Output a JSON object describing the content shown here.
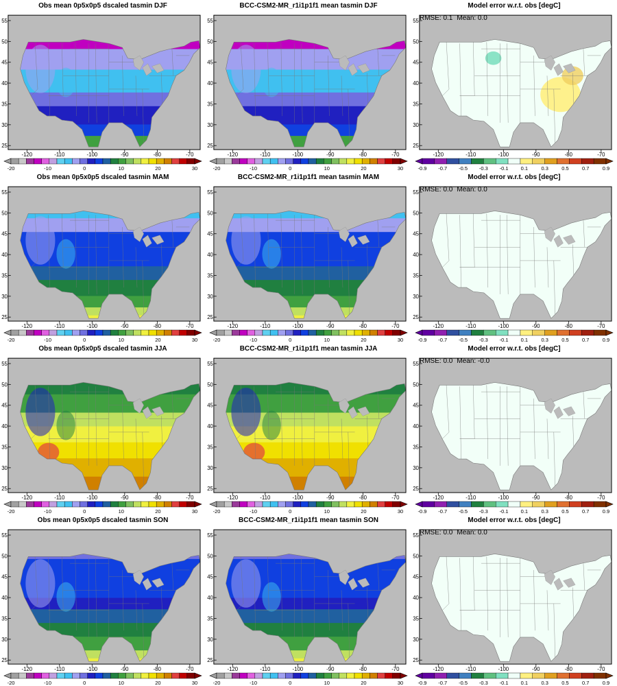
{
  "rows": [
    {
      "season": "DJF",
      "obs_title": "Obs mean 0p5x0p5 dscaled tasmin DJF",
      "model_title": "BCC-CSM2-MR_r1i1p1f1 mean tasmin DJF",
      "error_title": "Model error w.r.t. obs [degC]",
      "rmse": "RMSE: 0.1",
      "mean": "Mean: 0.0"
    },
    {
      "season": "MAM",
      "obs_title": "Obs mean 0p5x0p5 dscaled tasmin MAM",
      "model_title": "BCC-CSM2-MR_r1i1p1f1 mean tasmin MAM",
      "error_title": "Model error w.r.t. obs [degC]",
      "rmse": "RMSE: 0.0",
      "mean": "Mean: 0.0"
    },
    {
      "season": "JJA",
      "obs_title": "Obs mean 0p5x0p5 dscaled tasmin JJA",
      "model_title": "BCC-CSM2-MR_r1i1p1f1 mean tasmin JJA",
      "error_title": "Model error w.r.t. obs [degC]",
      "rmse": "RMSE: 0.0",
      "mean": "Mean: -0.0"
    },
    {
      "season": "SON",
      "obs_title": "Obs mean 0p5x0p5 dscaled tasmin SON",
      "model_title": "BCC-CSM2-MR_r1i1p1f1 mean tasmin SON",
      "error_title": "Model error w.r.t. obs [degC]",
      "rmse": "RMSE: 0.0",
      "mean": "Mean: 0.0"
    }
  ],
  "map_axes": {
    "lon_ticks": [
      "-120",
      "-110",
      "-100",
      "-90",
      "-80",
      "-70"
    ],
    "lat_ticks": [
      "55",
      "50",
      "45",
      "40",
      "35",
      "30",
      "25"
    ]
  },
  "temp_colorbar": {
    "labels": [
      "-20",
      "-10",
      "0",
      "10",
      "20",
      "30"
    ],
    "colors": [
      "#a0a0a0",
      "#c8c8c8",
      "#9a3a9a",
      "#c000c0",
      "#e060e0",
      "#c0a0e0",
      "#5fd0f0",
      "#40c0f0",
      "#a0a0f0",
      "#7070e0",
      "#2020c0",
      "#1040e0",
      "#2060a0",
      "#208040",
      "#40a040",
      "#80c060",
      "#c0e060",
      "#f0f040",
      "#f0e000",
      "#e0b000",
      "#d08000",
      "#e04040",
      "#c00000",
      "#800000"
    ]
  },
  "err_colorbar": {
    "labels": [
      "-0.9",
      "-0.7",
      "-0.5",
      "-0.3",
      "-0.1",
      "0.1",
      "0.3",
      "0.5",
      "0.7",
      "0.9"
    ],
    "colors": [
      "#6000a0",
      "#9020b0",
      "#3050a0",
      "#4080c0",
      "#208040",
      "#60c080",
      "#80e0c0",
      "#f0fff8",
      "#fff080",
      "#f0d060",
      "#e0a020",
      "#e07030",
      "#d04020",
      "#a02010",
      "#803000"
    ]
  },
  "colors": {
    "land_mask": "#bbbbbb",
    "error_fill": "#f2fff8",
    "frame": "#000000",
    "border": "#777777"
  }
}
